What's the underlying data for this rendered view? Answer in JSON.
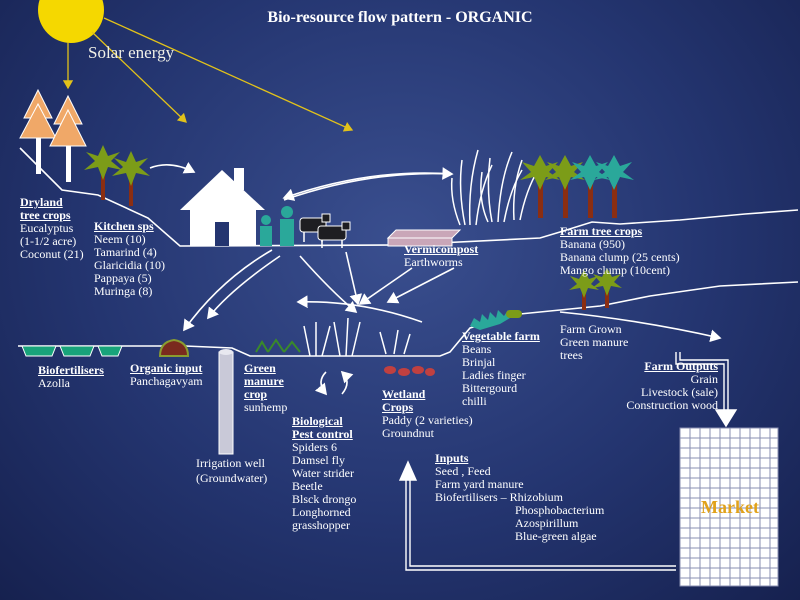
{
  "title": "Bio-resource flow pattern - ORGANIC",
  "solar": "Solar energy",
  "dryland": {
    "heading": "Dryland tree crops",
    "heading_l1": "Dryland",
    "heading_l2": "tree crops",
    "items": [
      "Eucalyptus",
      "(1-1/2 acre)",
      "Coconut (21)"
    ]
  },
  "kitchen": {
    "heading": "Kitchen sps",
    "items": [
      "Neem (10)",
      "Tamarind (4)",
      "Glaricidia (10)",
      "Pappaya (5)",
      "Muringa (8)"
    ]
  },
  "vermicompost": {
    "heading": "Vermicompost",
    "item": "Earthworms"
  },
  "farm_tree": {
    "heading": "Farm tree crops",
    "items": [
      "Banana (950)",
      "Banana clump (25 cents)",
      "Mango clump (10cent)"
    ]
  },
  "biofert": {
    "heading": "Biofertilisers",
    "item": "Azolla"
  },
  "organic": {
    "heading": "Organic input",
    "item": "Panchagavyam"
  },
  "green_manure": {
    "heading_l1": "Green",
    "heading_l2": "manure",
    "heading_l3": "crop",
    "item": "sunhemp"
  },
  "bio_pest": {
    "heading_l1": "Biological",
    "heading_l2": "Pest control",
    "items": [
      "Spiders 6",
      "Damsel fly",
      "Water strider",
      "Beetle",
      "Blsck drongo",
      "Longhorned",
      "grasshopper"
    ]
  },
  "wetland": {
    "heading_l1": "Wetland",
    "heading_l2": "Crops",
    "items": [
      "Paddy (2 varieties)",
      "Groundnut"
    ]
  },
  "vegetable": {
    "heading": "Vegetable farm",
    "items": [
      "Beans",
      "Brinjal",
      "Ladies finger",
      "Bittergourd",
      "chilli"
    ]
  },
  "farm_grown": {
    "items": [
      "Farm Grown",
      "Green manure",
      "trees"
    ]
  },
  "farm_outputs": {
    "heading": "Farm Outputs",
    "items": [
      "Grain",
      "Livestock (sale)",
      "Construction wood"
    ]
  },
  "irrigation": {
    "items": [
      "Irrigation well",
      "(Groundwater)"
    ]
  },
  "inputs": {
    "heading": "Inputs",
    "items": [
      "Seed , Feed",
      "Farm yard manure",
      "Biofertilisers – Rhizobium",
      "Phosphobacterium",
      "Azospirillum",
      "Blue-green algae"
    ]
  },
  "market": "Market",
  "colors": {
    "background": "#243570",
    "sun": "#f5d800",
    "tree_green": "#7c9c18",
    "teal": "#2aa89a",
    "trunk": "#8b2e12",
    "market_grid": "#8a8fb2",
    "market_text": "#e0a11a",
    "ground_line": "#ffffff"
  },
  "icons": [
    "sun-icon",
    "pine-tree-icon",
    "palm-tree-icon",
    "house-icon",
    "person-icon",
    "cow-icon",
    "compost-pit-icon",
    "grass-clump-icon",
    "azolla-pond-icon",
    "panchagavyam-pot-icon",
    "well-icon",
    "market-grid-icon",
    "cycle-arrows-icon"
  ]
}
